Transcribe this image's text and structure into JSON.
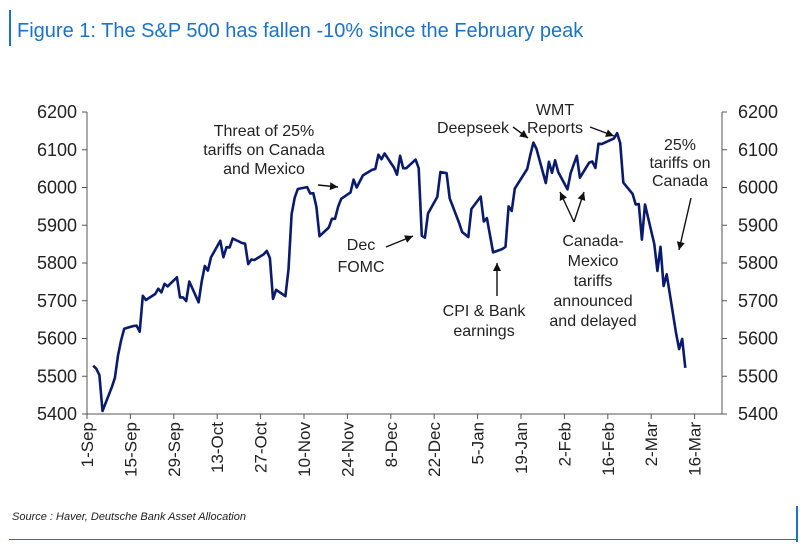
{
  "title": "Figure 1: The S&P 500 has fallen -10% since the February peak",
  "source": "Source : Haver, Deutsche Bank Asset Allocation",
  "chart_data": {
    "type": "line",
    "title": "Figure 1: The S&P 500 has fallen -10% since the February peak",
    "xlabel": "",
    "ylabel": "",
    "ylim": [
      5400,
      6200
    ],
    "yticks": [
      5400,
      5500,
      5600,
      5700,
      5800,
      5900,
      6000,
      6100,
      6200
    ],
    "xtick_labels": [
      "1-Sep",
      "15-Sep",
      "29-Sep",
      "13-Oct",
      "27-Oct",
      "10-Nov",
      "24-Nov",
      "8-Dec",
      "22-Dec",
      "5-Jan",
      "19-Jan",
      "2-Feb",
      "16-Feb",
      "2-Mar",
      "16-Mar"
    ],
    "x_start": "2024-09-01",
    "grid": false,
    "legend": "none",
    "line_color": "#0a1a6e",
    "series": [
      {
        "x": [
          "2024-09-03",
          "2024-09-04",
          "2024-09-05",
          "2024-09-06",
          "2024-09-09",
          "2024-09-10",
          "2024-09-11",
          "2024-09-12",
          "2024-09-13",
          "2024-09-16",
          "2024-09-17",
          "2024-09-18",
          "2024-09-19",
          "2024-09-20",
          "2024-09-23",
          "2024-09-24",
          "2024-09-25",
          "2024-09-26",
          "2024-09-27",
          "2024-09-30",
          "2024-10-01",
          "2024-10-02",
          "2024-10-03",
          "2024-10-04",
          "2024-10-07",
          "2024-10-08",
          "2024-10-09",
          "2024-10-10",
          "2024-10-11",
          "2024-10-14",
          "2024-10-15",
          "2024-10-16",
          "2024-10-17",
          "2024-10-18",
          "2024-10-21",
          "2024-10-22",
          "2024-10-23",
          "2024-10-24",
          "2024-10-25",
          "2024-10-28",
          "2024-10-29",
          "2024-10-30",
          "2024-10-31",
          "2024-11-01",
          "2024-11-04",
          "2024-11-05",
          "2024-11-06",
          "2024-11-07",
          "2024-11-08",
          "2024-11-11",
          "2024-11-12",
          "2024-11-13",
          "2024-11-14",
          "2024-11-15",
          "2024-11-18",
          "2024-11-19",
          "2024-11-20",
          "2024-11-21",
          "2024-11-22",
          "2024-11-25",
          "2024-11-26",
          "2024-11-27",
          "2024-11-29",
          "2024-12-02",
          "2024-12-03",
          "2024-12-04",
          "2024-12-05",
          "2024-12-06",
          "2024-12-09",
          "2024-12-10",
          "2024-12-11",
          "2024-12-12",
          "2024-12-13",
          "2024-12-16",
          "2024-12-17",
          "2024-12-18",
          "2024-12-19",
          "2024-12-20",
          "2024-12-23",
          "2024-12-24",
          "2024-12-26",
          "2024-12-27",
          "2024-12-30",
          "2024-12-31",
          "2025-01-02",
          "2025-01-03",
          "2025-01-06",
          "2025-01-07",
          "2025-01-08",
          "2025-01-10",
          "2025-01-13",
          "2025-01-14",
          "2025-01-15",
          "2025-01-16",
          "2025-01-17",
          "2025-01-21",
          "2025-01-22",
          "2025-01-23",
          "2025-01-24",
          "2025-01-27",
          "2025-01-28",
          "2025-01-29",
          "2025-01-30",
          "2025-01-31",
          "2025-02-03",
          "2025-02-04",
          "2025-02-05",
          "2025-02-06",
          "2025-02-07",
          "2025-02-10",
          "2025-02-11",
          "2025-02-12",
          "2025-02-13",
          "2025-02-14",
          "2025-02-18",
          "2025-02-19",
          "2025-02-20",
          "2025-02-21",
          "2025-02-24",
          "2025-02-25",
          "2025-02-26",
          "2025-02-27",
          "2025-02-28",
          "2025-03-03",
          "2025-03-04",
          "2025-03-05",
          "2025-03-06",
          "2025-03-07",
          "2025-03-10",
          "2025-03-11",
          "2025-03-12",
          "2025-03-13"
        ],
        "y": [
          5528,
          5520,
          5503,
          5408,
          5471,
          5496,
          5555,
          5595,
          5626,
          5633,
          5634,
          5618,
          5713,
          5702,
          5718,
          5732,
          5722,
          5745,
          5738,
          5762,
          5709,
          5709,
          5699,
          5751,
          5696,
          5751,
          5792,
          5780,
          5815,
          5859,
          5815,
          5842,
          5841,
          5865,
          5853,
          5851,
          5797,
          5809,
          5808,
          5823,
          5832,
          5813,
          5705,
          5729,
          5712,
          5783,
          5929,
          5973,
          5996,
          6001,
          5984,
          5985,
          5949,
          5871,
          5894,
          5917,
          5917,
          5949,
          5970,
          5987,
          6021,
          6000,
          6032,
          6047,
          6049,
          6087,
          6075,
          6090,
          6053,
          6034,
          6084,
          6051,
          6051,
          6074,
          6051,
          5872,
          5867,
          5931,
          5975,
          6041,
          6038,
          5971,
          5907,
          5882,
          5869,
          5943,
          5976,
          5910,
          5919,
          5828,
          5837,
          5843,
          5950,
          5938,
          5997,
          6049,
          6086,
          6119,
          6102,
          6012,
          6068,
          6039,
          6072,
          6041,
          5995,
          6038,
          6061,
          6084,
          6026,
          6066,
          6069,
          6052,
          6116,
          6115,
          6130,
          6144,
          6118,
          6013,
          5983,
          5955,
          5956,
          5862,
          5955,
          5850,
          5779,
          5843,
          5739,
          5770,
          5615,
          5572,
          5599,
          5522
        ]
      }
    ],
    "annotations": [
      {
        "text": [
          "Threat of 25%",
          "tariffs on Canada",
          "and Mexico"
        ]
      },
      {
        "text": [
          "Dec",
          "FOMC"
        ]
      },
      {
        "text": [
          "Deepseek"
        ]
      },
      {
        "text": [
          "WMT",
          "Reports"
        ]
      },
      {
        "text": [
          "25%",
          "tariffs on",
          "Canada"
        ]
      },
      {
        "text": [
          "CPI & Bank",
          "earnings"
        ]
      },
      {
        "text": [
          "Canada-",
          "Mexico",
          "tariffs",
          "announced",
          "and delayed"
        ]
      }
    ]
  }
}
